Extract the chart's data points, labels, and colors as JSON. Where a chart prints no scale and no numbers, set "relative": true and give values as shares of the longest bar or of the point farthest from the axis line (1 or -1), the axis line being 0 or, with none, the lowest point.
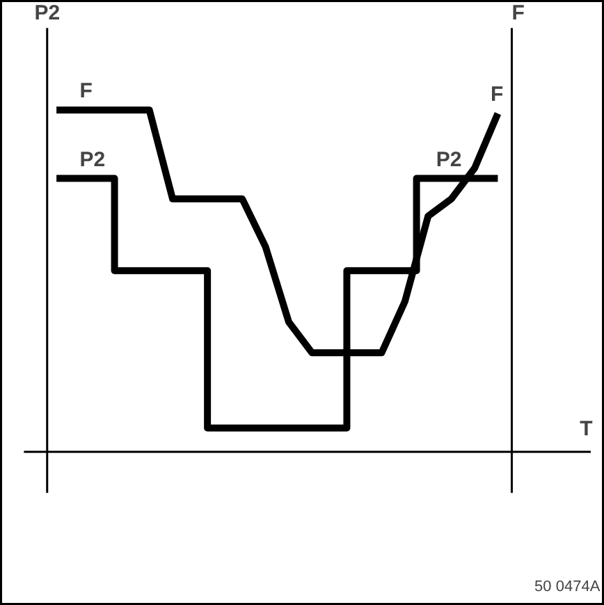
{
  "chart_data": {
    "type": "line",
    "relative": true,
    "xlabel": "T",
    "ylabel": "P2",
    "y2label": "F",
    "grid": false,
    "legend": false,
    "marker": "none",
    "line_style": "solid",
    "annotations": [
      "50 0474A"
    ],
    "categories": [
      null,
      null,
      null,
      null,
      null,
      null,
      null,
      null,
      null,
      null,
      null,
      null,
      null,
      null,
      null,
      null,
      null,
      null,
      null,
      null
    ],
    "series": [
      {
        "name": "F",
        "color": "#000000",
        "values": [
          1,
          1,
          1,
          1,
          1,
          0.74,
          0.74,
          0.74,
          0.74,
          0.6,
          0.38,
          0.29,
          0.29,
          0.29,
          0.29,
          0.44,
          0.69,
          0.74,
          0.83,
          0.99
        ]
      },
      {
        "name": "P2",
        "type": "step",
        "color": "#000000",
        "values": [
          0.8,
          0.8,
          0.8,
          0.53,
          0.53,
          0.53,
          0.53,
          0.07,
          0.07,
          0.07,
          0.07,
          0.07,
          0.07,
          0.53,
          0.53,
          0.53,
          0.8,
          0.8,
          0.8,
          0.8
        ]
      }
    ]
  }
}
